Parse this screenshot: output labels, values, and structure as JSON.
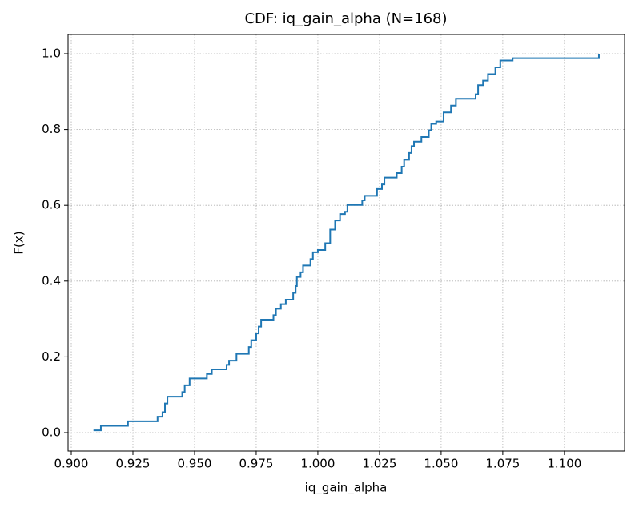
{
  "chart_data": {
    "type": "step",
    "title": "CDF: iq_gain_alpha  (N=168)",
    "x_label": "iq_gain_alpha",
    "y_label": "F(x)",
    "series": [
      {
        "color": "#1f77b4",
        "x": [
          0.909,
          0.912,
          0.923,
          0.935,
          0.937,
          0.938,
          0.939,
          0.945,
          0.946,
          0.948,
          0.955,
          0.957,
          0.963,
          0.964,
          0.967,
          0.972,
          0.973,
          0.975,
          0.976,
          0.977,
          0.982,
          0.983,
          0.985,
          0.987,
          0.99,
          0.991,
          0.9915,
          0.993,
          0.994,
          0.997,
          0.998,
          1.0,
          1.003,
          1.005,
          1.007,
          1.009,
          1.011,
          1.012,
          1.018,
          1.019,
          1.024,
          1.026,
          1.027,
          1.032,
          1.034,
          1.035,
          1.037,
          1.038,
          1.039,
          1.042,
          1.045,
          1.046,
          1.048,
          1.051,
          1.054,
          1.056,
          1.064,
          1.065,
          1.067,
          1.069,
          1.072,
          1.074,
          1.079,
          1.114
        ],
        "values": [
          0.006,
          0.018,
          0.03,
          0.042,
          0.054,
          0.077,
          0.095,
          0.107,
          0.125,
          0.143,
          0.155,
          0.167,
          0.179,
          0.19,
          0.208,
          0.226,
          0.244,
          0.262,
          0.28,
          0.298,
          0.31,
          0.327,
          0.339,
          0.351,
          0.369,
          0.387,
          0.411,
          0.423,
          0.441,
          0.458,
          0.476,
          0.482,
          0.5,
          0.536,
          0.56,
          0.577,
          0.583,
          0.601,
          0.613,
          0.625,
          0.643,
          0.655,
          0.673,
          0.685,
          0.702,
          0.72,
          0.738,
          0.756,
          0.768,
          0.78,
          0.798,
          0.815,
          0.821,
          0.845,
          0.863,
          0.881,
          0.893,
          0.917,
          0.929,
          0.946,
          0.964,
          0.982,
          0.988,
          1.0
        ]
      }
    ],
    "xlim": [
      0.8987,
      1.1244
    ],
    "ylim": [
      -0.0486,
      1.0507
    ],
    "xticks": [
      {
        "value": 0.9,
        "label": "0.900"
      },
      {
        "value": 0.925,
        "label": "0.925"
      },
      {
        "value": 0.95,
        "label": "0.950"
      },
      {
        "value": 0.975,
        "label": "0.975"
      },
      {
        "value": 1.0,
        "label": "1.000"
      },
      {
        "value": 1.025,
        "label": "1.025"
      },
      {
        "value": 1.05,
        "label": "1.050"
      },
      {
        "value": 1.075,
        "label": "1.075"
      },
      {
        "value": 1.1,
        "label": "1.100"
      }
    ],
    "yticks": [
      {
        "value": 0,
        "label": "0.0"
      },
      {
        "value": 0.2,
        "label": "0.2"
      },
      {
        "value": 0.4,
        "label": "0.4"
      },
      {
        "value": 0.6,
        "label": "0.6"
      },
      {
        "value": 0.8,
        "label": "0.8"
      },
      {
        "value": 1.0,
        "label": "1.0"
      }
    ],
    "grid": true
  }
}
